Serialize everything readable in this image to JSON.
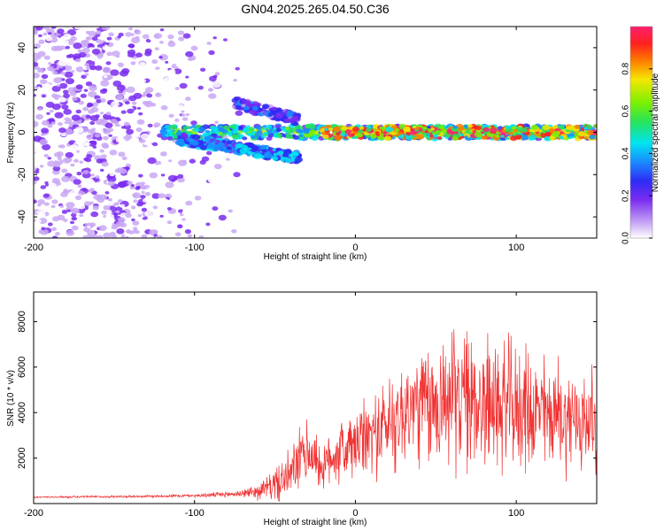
{
  "title": "GN04.2025.265.04.50.C36",
  "chart_data": [
    {
      "type": "heatmap",
      "xlabel": "Height of straight line (km)",
      "ylabel": "Frequency (Hz)",
      "xlim": [
        -200,
        150
      ],
      "ylim": [
        -50,
        50
      ],
      "xticks": [
        -200,
        -100,
        0,
        100
      ],
      "xtick_labels": [
        "-200",
        "-100",
        "0",
        "100"
      ],
      "yticks": [
        -40,
        -20,
        0,
        20,
        40
      ],
      "ytick_labels": [
        "-40",
        "-20",
        "0",
        "20",
        "40"
      ],
      "colorbar": {
        "label": "Normalized spectral amplitude",
        "range": [
          0,
          1
        ],
        "ticks": [
          0.0,
          0.2,
          0.4,
          0.6,
          0.8
        ],
        "tick_labels": [
          "0.0",
          "0.2",
          "0.4",
          "0.6",
          "0.8"
        ],
        "colors": [
          "#ffffff",
          "#c9a8f5",
          "#7a2cf0",
          "#2e2cf5",
          "#1a8cff",
          "#00e5f0",
          "#27e35a",
          "#7cf000",
          "#f5e600",
          "#ff7a00",
          "#ff2020",
          "#ff1f6e"
        ]
      },
      "features": [
        {
          "name": "noise scatter",
          "x_range": [
            -200,
            -65
          ],
          "y_range": [
            -50,
            50
          ],
          "amplitude": 0.15
        },
        {
          "name": "main carrier",
          "x_range": [
            -120,
            150
          ],
          "y_value": 0,
          "amplitude": 0.6
        },
        {
          "name": "lower branch",
          "x_range": [
            -110,
            -35
          ],
          "y_range": [
            -3,
            -12
          ],
          "amplitude": 0.35
        },
        {
          "name": "upper branch",
          "x_range": [
            -75,
            -35
          ],
          "y_range": [
            14,
            6
          ],
          "amplitude": 0.25
        },
        {
          "name": "peak core",
          "x_range": [
            -20,
            150
          ],
          "y_value": 0,
          "amplitude": 0.9
        }
      ]
    },
    {
      "type": "line",
      "xlabel": "Height of straight line (km)",
      "ylabel": "SNR (10 * v/v)",
      "xlim": [
        -200,
        150
      ],
      "ylim": [
        0,
        9300
      ],
      "xticks": [
        -200,
        -100,
        0,
        100
      ],
      "xtick_labels": [
        "-200",
        "-100",
        "0",
        "100"
      ],
      "yticks": [
        2000,
        4000,
        6000,
        8000
      ],
      "ytick_labels": [
        "2000",
        "4000",
        "6000",
        "8000"
      ],
      "line_color": "#f03030",
      "series": [
        {
          "name": "SNR",
          "x": [
            -200,
            -180,
            -160,
            -140,
            -120,
            -100,
            -80,
            -70,
            -60,
            -55,
            -50,
            -45,
            -40,
            -35,
            -30,
            -25,
            -20,
            -15,
            -10,
            -5,
            0,
            5,
            10,
            15,
            20,
            25,
            30,
            35,
            40,
            45,
            50,
            55,
            60,
            65,
            70,
            75,
            80,
            85,
            90,
            95,
            100,
            105,
            110,
            115,
            120,
            125,
            130,
            135,
            140,
            145,
            150
          ],
          "y": [
            280,
            290,
            300,
            310,
            330,
            350,
            400,
            450,
            550,
            700,
            850,
            1000,
            1300,
            1900,
            2300,
            2000,
            1500,
            2100,
            2300,
            2400,
            2500,
            2800,
            3000,
            3200,
            3500,
            3800,
            3900,
            4200,
            4400,
            4100,
            4300,
            4700,
            4500,
            4800,
            4400,
            4600,
            4300,
            4500,
            4200,
            4400,
            4100,
            4300,
            3900,
            4100,
            3800,
            4000,
            3700,
            3800,
            3600,
            3700,
            3500
          ],
          "amplitude": [
            30,
            35,
            40,
            45,
            50,
            60,
            100,
            140,
            300,
            400,
            600,
            800,
            900,
            1100,
            1200,
            1000,
            700,
            1100,
            1200,
            1300,
            1300,
            1400,
            1500,
            1600,
            1800,
            1900,
            2000,
            2100,
            2200,
            2300,
            2300,
            2400,
            2500,
            2500,
            2500,
            2500,
            2400,
            2400,
            2300,
            2300,
            2200,
            2200,
            2100,
            2100,
            2000,
            2000,
            1900,
            1900,
            1900,
            1800,
            1800
          ]
        }
      ]
    }
  ]
}
